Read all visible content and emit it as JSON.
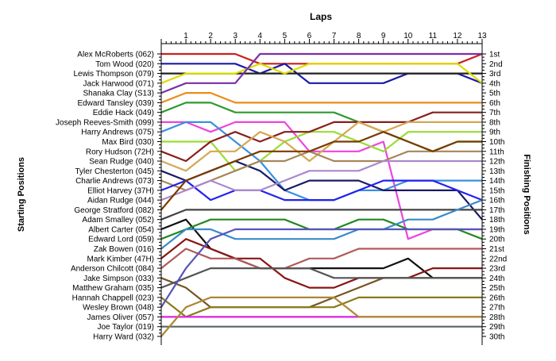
{
  "chart_data": {
    "type": "line",
    "title": "Laps",
    "ylabel_left": "Starting Positions",
    "ylabel_right": "Finishing Positions",
    "x": [
      0,
      1,
      2,
      3,
      4,
      5,
      6,
      7,
      8,
      9,
      10,
      11,
      12,
      13
    ],
    "x_tick_labels": [
      "1",
      "2",
      "3",
      "4",
      "5",
      "6",
      "7",
      "8",
      "9",
      "10",
      "11",
      "12",
      "13"
    ],
    "start_labels": [
      "Alex McRoberts (062)",
      "Tom Wood (020)",
      "Lewis Thompson (079)",
      "Jack Harwood (071)",
      "Shanaka Clay (S13)",
      "Edward Tansley (039)",
      "Eddie Hack (049)",
      "Joseph Reeves-Smith (099)",
      "Harry Andrews (075)",
      "Max Bird (030)",
      "Rory Hudson (72H)",
      "Sean Rudge (040)",
      "Tyler Chesterton (045)",
      "Charlie Andrews (073)",
      "Elliot Harvey (37H)",
      "Aidan Rudge (044)",
      "George Stratford (082)",
      "Adam Smalley (052)",
      "Albert Carter (054)",
      "Edward Lord (059)",
      "Zak Bowen (016)",
      "Mark Kimber (47H)",
      "Anderson Chilcott (084)",
      "Jake Simpson (033)",
      "Matthew Graham (035)",
      "Hannah Chappell (023)",
      "Wesley Brown (048)",
      "James Oliver (057)",
      "Joe Taylor (019)",
      "Harry Ward (032)"
    ],
    "finish_labels": [
      "1st",
      "2nd",
      "3rd",
      "4th",
      "5th",
      "6th",
      "7th",
      "8th",
      "9th",
      "10th",
      "11th",
      "12th",
      "13th",
      "14th",
      "15th",
      "16th",
      "17th",
      "18th",
      "19th",
      "20th",
      "21st",
      "22nd",
      "23rd",
      "24th",
      "25th",
      "26th",
      "27th",
      "28th",
      "29th",
      "30th"
    ],
    "y_axis": {
      "min": 1,
      "max": 30,
      "inverted": true
    },
    "grid": false,
    "series": [
      {
        "color": "#cc1f1f",
        "values": [
          1,
          1,
          1,
          1,
          2,
          2,
          2,
          2,
          2,
          2,
          2,
          2,
          2,
          1
        ]
      },
      {
        "color": "#1a1aa8",
        "values": [
          2,
          2,
          2,
          2,
          3,
          2,
          4,
          4,
          4,
          4,
          3,
          3,
          3,
          4
        ]
      },
      {
        "color": "#222222",
        "values": [
          3,
          3,
          3,
          3,
          3,
          3,
          3,
          3,
          3,
          3,
          3,
          3,
          3,
          3
        ]
      },
      {
        "color": "#dddd00",
        "values": [
          4,
          3,
          3,
          3,
          2,
          3,
          2,
          2,
          2,
          2,
          2,
          2,
          2,
          4
        ]
      },
      {
        "color": "#7b2fa8",
        "values": [
          5,
          4,
          4,
          4,
          1,
          1,
          1,
          1,
          1,
          1,
          1,
          1,
          1,
          1
        ]
      },
      {
        "color": "#ee8a1a",
        "values": [
          6,
          5,
          5,
          6,
          6,
          6,
          6,
          6,
          6,
          6,
          6,
          6,
          6,
          6
        ]
      },
      {
        "color": "#2e9a2e",
        "values": [
          7,
          6,
          6,
          7,
          7,
          7,
          7,
          7,
          8,
          9,
          10,
          11,
          10,
          10
        ]
      },
      {
        "color": "#ee44dd",
        "values": [
          8,
          8,
          9,
          8,
          8,
          8,
          11,
          11,
          11,
          10,
          20,
          19,
          19,
          19
        ]
      },
      {
        "color": "#3a8fe0",
        "values": [
          9,
          8,
          8,
          10,
          12,
          15,
          16,
          16,
          15,
          15,
          14,
          14,
          14,
          14
        ]
      },
      {
        "color": "#99dd33",
        "values": [
          10,
          10,
          10,
          13,
          12,
          10,
          9,
          9,
          10,
          11,
          9,
          9,
          9,
          9
        ]
      },
      {
        "color": "#881f1f",
        "values": [
          11,
          12,
          10,
          9,
          10,
          9,
          9,
          8,
          8,
          8,
          8,
          7,
          7,
          7
        ]
      },
      {
        "color": "#d4a855",
        "values": [
          12,
          13,
          11,
          11,
          9,
          10,
          12,
          10,
          8,
          9,
          8,
          8,
          8,
          8
        ]
      },
      {
        "color": "#1a1a66",
        "values": [
          13,
          14,
          13,
          12,
          13,
          15,
          14,
          14,
          14,
          15,
          15,
          15,
          15,
          18
        ]
      },
      {
        "color": "#a8855a",
        "values": [
          14,
          15,
          14,
          13,
          12,
          12,
          11,
          12,
          12,
          12,
          11,
          11,
          11,
          11
        ]
      },
      {
        "color": "#2222ee",
        "values": [
          15,
          14,
          16,
          15,
          15,
          16,
          16,
          16,
          15,
          14,
          14,
          14,
          15,
          16
        ]
      },
      {
        "color": "#aa88cc",
        "values": [
          16,
          15,
          14,
          15,
          15,
          14,
          13,
          13,
          13,
          12,
          12,
          12,
          12,
          12
        ]
      },
      {
        "color": "#7a3a00",
        "values": [
          17,
          14,
          13,
          12,
          11,
          11,
          11,
          10,
          10,
          9,
          10,
          11,
          10,
          10
        ]
      },
      {
        "color": "#444444",
        "values": [
          18,
          17,
          17,
          17,
          17,
          17,
          17,
          17,
          17,
          17,
          17,
          17,
          17,
          17
        ]
      },
      {
        "color": "#111111",
        "values": [
          19,
          18,
          21,
          22,
          23,
          23,
          23,
          23,
          23,
          23,
          22,
          24,
          24,
          24
        ]
      },
      {
        "color": "#228822",
        "values": [
          20,
          19,
          18,
          18,
          18,
          18,
          19,
          19,
          18,
          18,
          19,
          19,
          19,
          20
        ]
      },
      {
        "color": "#3a8ac8",
        "values": [
          21,
          19,
          19,
          20,
          20,
          20,
          20,
          20,
          19,
          19,
          18,
          18,
          17,
          16
        ]
      },
      {
        "color": "#8a1515",
        "values": [
          22,
          20,
          21,
          22,
          22,
          24,
          25,
          25,
          24,
          24,
          24,
          23,
          23,
          23
        ]
      },
      {
        "color": "#b05a5a",
        "values": [
          23,
          21,
          22,
          22,
          23,
          23,
          22,
          22,
          21,
          21,
          21,
          21,
          21,
          21
        ]
      },
      {
        "color": "#775522",
        "values": [
          24,
          25,
          27,
          27,
          27,
          27,
          27,
          26,
          25,
          24,
          24,
          24,
          24,
          24
        ]
      },
      {
        "color": "#555555",
        "values": [
          25,
          24,
          23,
          23,
          23,
          23,
          23,
          24,
          24,
          24,
          24,
          24,
          24,
          24
        ]
      },
      {
        "color": "#8a7a1a",
        "values": [
          26,
          28,
          27,
          27,
          27,
          27,
          27,
          27,
          26,
          26,
          26,
          26,
          26,
          26
        ]
      },
      {
        "color": "#5555bb",
        "values": [
          27,
          23,
          20,
          19,
          19,
          19,
          19,
          19,
          19,
          19,
          19,
          19,
          19,
          19
        ]
      },
      {
        "color": "#dd22dd",
        "values": [
          28,
          28,
          28,
          28,
          28,
          28,
          28,
          28,
          28,
          28,
          28,
          28,
          28,
          28
        ]
      },
      {
        "color": "#556666",
        "values": [
          29,
          29,
          29,
          29,
          29,
          29,
          29,
          29,
          29,
          29,
          29,
          29,
          29,
          29
        ]
      },
      {
        "color": "#aa8833",
        "values": [
          30,
          27,
          26,
          26,
          26,
          26,
          26,
          26,
          28,
          28,
          28,
          28,
          28,
          28
        ]
      }
    ]
  }
}
